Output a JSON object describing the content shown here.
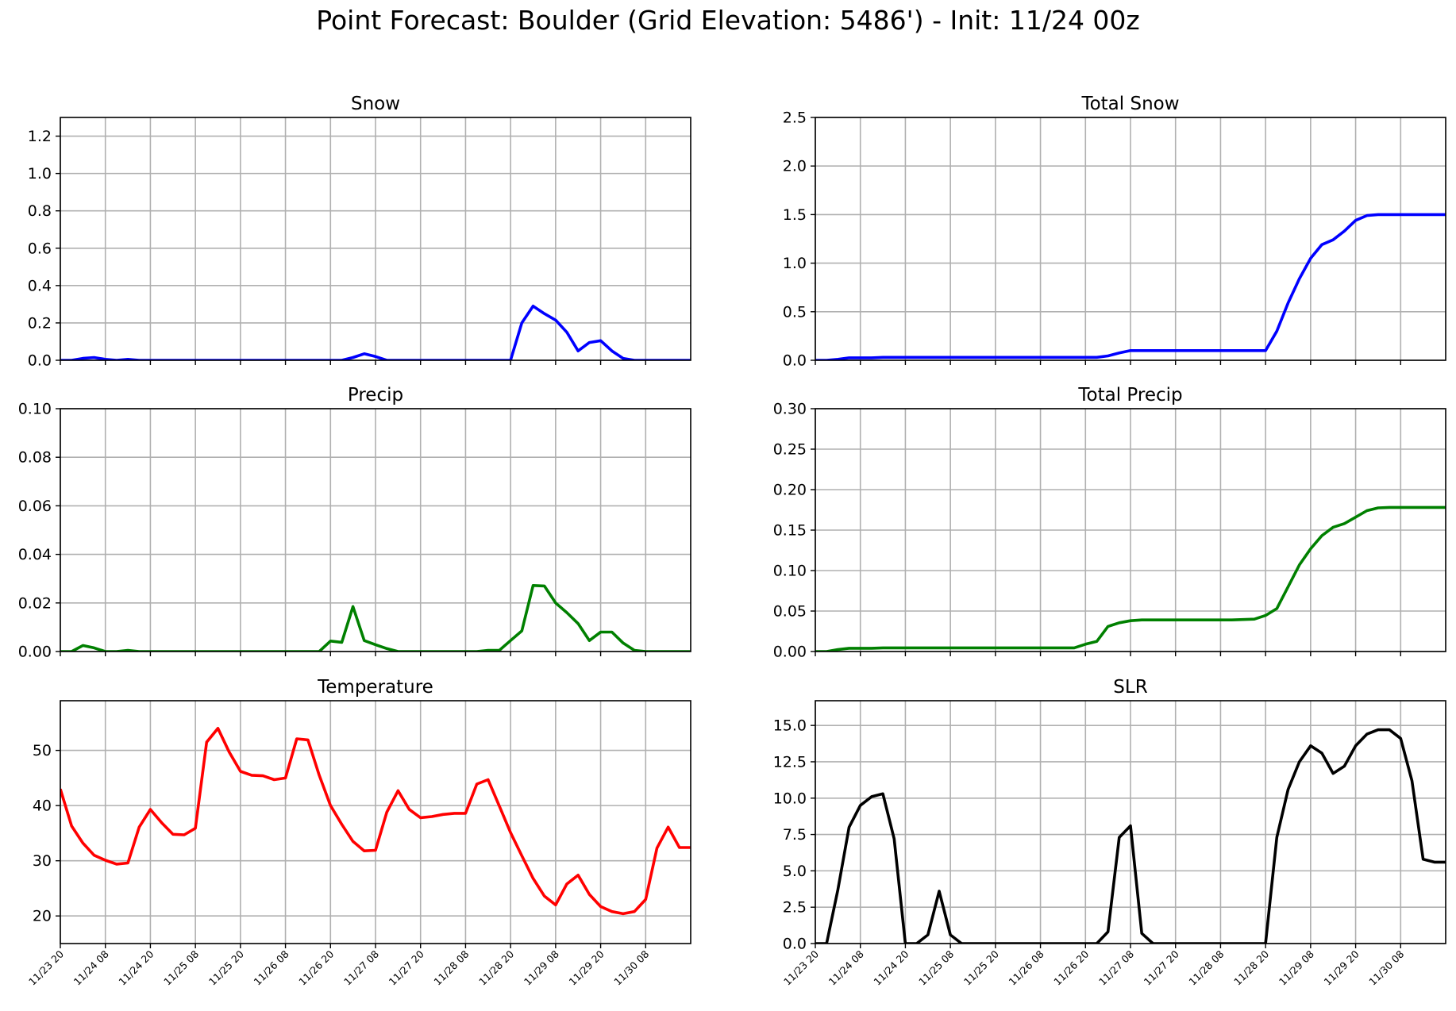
{
  "figure": {
    "title": "Point Forecast: Boulder (Grid Elevation: 5486') - Init: 11/24 00z"
  },
  "colors": {
    "blue": "#0000ff",
    "green": "#008000",
    "red": "#ff0000",
    "black": "#000000",
    "grid": "#b0b0b0"
  },
  "chart_data": [
    {
      "type": "line",
      "title": "Snow",
      "xlabel": "",
      "ylabel": "",
      "color": "#0000ff",
      "grid": true,
      "ylim": [
        0,
        1.3
      ],
      "yticks": [
        "0.0",
        "0.2",
        "0.4",
        "0.6",
        "0.8",
        "1.0",
        "1.2"
      ],
      "x_tick_labels": [
        "11/23 20",
        "11/24 08",
        "11/24 20",
        "11/25 08",
        "11/25 20",
        "11/26 08",
        "11/26 20",
        "11/27 08",
        "11/27 20",
        "11/28 08",
        "11/28 20",
        "11/29 08",
        "11/29 20",
        "11/30 08"
      ],
      "series": [
        {
          "values": [
            0,
            0,
            0.01,
            0.015,
            0.005,
            0,
            0.005,
            0,
            0,
            0,
            0,
            0,
            0,
            0,
            0,
            0,
            0,
            0,
            0,
            0,
            0,
            0,
            0,
            0,
            0,
            0,
            0.015,
            0.035,
            0.02,
            0,
            0,
            0,
            0,
            0,
            0,
            0,
            0,
            0,
            0,
            0,
            0,
            0.2,
            0.29,
            0.25,
            0.215,
            0.15,
            0.05,
            0.095,
            0.105,
            0.05,
            0.01,
            0,
            0,
            0,
            0,
            0,
            0
          ]
        }
      ]
    },
    {
      "type": "line",
      "title": "Total Snow",
      "xlabel": "",
      "ylabel": "",
      "color": "#0000ff",
      "grid": true,
      "ylim": [
        0,
        2.5
      ],
      "yticks": [
        "0.0",
        "0.5",
        "1.0",
        "1.5",
        "2.0",
        "2.5"
      ],
      "x_tick_labels": [
        "11/23 20",
        "11/24 08",
        "11/24 20",
        "11/25 08",
        "11/25 20",
        "11/26 08",
        "11/26 20",
        "11/27 08",
        "11/27 20",
        "11/28 08",
        "11/28 20",
        "11/29 08",
        "11/29 20",
        "11/30 08"
      ],
      "series": [
        {
          "values": [
            0,
            0,
            0.01,
            0.025,
            0.025,
            0.025,
            0.03,
            0.03,
            0.03,
            0.03,
            0.03,
            0.03,
            0.03,
            0.03,
            0.03,
            0.03,
            0.03,
            0.03,
            0.03,
            0.03,
            0.03,
            0.03,
            0.03,
            0.03,
            0.03,
            0.03,
            0.045,
            0.075,
            0.1,
            0.1,
            0.1,
            0.1,
            0.1,
            0.1,
            0.1,
            0.1,
            0.1,
            0.1,
            0.1,
            0.1,
            0.1,
            0.3,
            0.59,
            0.84,
            1.05,
            1.19,
            1.24,
            1.33,
            1.44,
            1.49,
            1.5,
            1.5,
            1.5,
            1.5,
            1.5,
            1.5,
            1.5
          ]
        }
      ]
    },
    {
      "type": "line",
      "title": "Precip",
      "xlabel": "",
      "ylabel": "",
      "color": "#008000",
      "grid": true,
      "ylim": [
        0,
        0.1
      ],
      "yticks": [
        "0.00",
        "0.02",
        "0.04",
        "0.06",
        "0.08",
        "0.10"
      ],
      "x_tick_labels": [
        "11/23 20",
        "11/24 08",
        "11/24 20",
        "11/25 08",
        "11/25 20",
        "11/26 08",
        "11/26 20",
        "11/27 08",
        "11/27 20",
        "11/28 08",
        "11/28 20",
        "11/29 08",
        "11/29 20",
        "11/30 08"
      ],
      "series": [
        {
          "values": [
            0,
            0,
            0.0025,
            0.0015,
            0,
            0,
            0.0005,
            0,
            0,
            0,
            0,
            0,
            0,
            0,
            0,
            0,
            0,
            0,
            0,
            0,
            0,
            0,
            0,
            0,
            0.0043,
            0.0038,
            0.0185,
            0.0045,
            0.0028,
            0.0012,
            0,
            0,
            0,
            0,
            0,
            0,
            0,
            0,
            0.0005,
            0.0005,
            0.0045,
            0.0085,
            0.0272,
            0.027,
            0.02,
            0.016,
            0.0115,
            0.0045,
            0.008,
            0.008,
            0.0035,
            0.0005,
            0,
            0,
            0,
            0,
            0
          ]
        }
      ]
    },
    {
      "type": "line",
      "title": "Total Precip",
      "xlabel": "",
      "ylabel": "",
      "color": "#008000",
      "grid": true,
      "ylim": [
        0,
        0.3
      ],
      "yticks": [
        "0.00",
        "0.05",
        "0.10",
        "0.15",
        "0.20",
        "0.25",
        "0.30"
      ],
      "x_tick_labels": [
        "11/23 20",
        "11/24 08",
        "11/24 20",
        "11/25 08",
        "11/25 20",
        "11/26 08",
        "11/26 20",
        "11/27 08",
        "11/27 20",
        "11/28 08",
        "11/28 20",
        "11/29 08",
        "11/29 20",
        "11/30 08"
      ],
      "series": [
        {
          "values": [
            0,
            0,
            0.0025,
            0.004,
            0.004,
            0.004,
            0.0045,
            0.0045,
            0.0045,
            0.0045,
            0.0045,
            0.0045,
            0.0045,
            0.0045,
            0.0045,
            0.0045,
            0.0045,
            0.0045,
            0.0045,
            0.0045,
            0.0045,
            0.0045,
            0.0045,
            0.0045,
            0.009,
            0.0125,
            0.031,
            0.0355,
            0.038,
            0.039,
            0.039,
            0.039,
            0.039,
            0.039,
            0.039,
            0.039,
            0.039,
            0.039,
            0.0395,
            0.04,
            0.0445,
            0.053,
            0.08,
            0.107,
            0.127,
            0.143,
            0.1535,
            0.158,
            0.166,
            0.174,
            0.1775,
            0.178,
            0.178,
            0.178,
            0.178,
            0.178,
            0.178
          ]
        }
      ]
    },
    {
      "type": "line",
      "title": "Temperature",
      "xlabel": "",
      "ylabel": "",
      "color": "#ff0000",
      "grid": true,
      "ylim": [
        15,
        59
      ],
      "yticks": [
        "20",
        "30",
        "40",
        "50"
      ],
      "x_tick_labels": [
        "11/23 20",
        "11/24 08",
        "11/24 20",
        "11/25 08",
        "11/25 20",
        "11/26 08",
        "11/26 20",
        "11/27 08",
        "11/27 20",
        "11/28 08",
        "11/28 20",
        "11/29 08",
        "11/29 20",
        "11/30 08"
      ],
      "series": [
        {
          "values": [
            43,
            36.3,
            33.2,
            31,
            30.1,
            29.4,
            29.6,
            36.1,
            39.3,
            36.9,
            34.8,
            34.7,
            35.9,
            51.5,
            54,
            49.7,
            46.2,
            45.5,
            45.4,
            44.7,
            45,
            52.1,
            51.9,
            45.5,
            40,
            36.6,
            33.5,
            31.8,
            31.9,
            38.8,
            42.7,
            39.3,
            37.8,
            38,
            38.4,
            38.6,
            38.6,
            43.9,
            44.7,
            39.9,
            35.1,
            30.9,
            26.8,
            23.6,
            22,
            25.8,
            27.4,
            23.9,
            21.7,
            20.8,
            20.4,
            20.8,
            23,
            32.3,
            36.1,
            32.4,
            32.4
          ]
        }
      ]
    },
    {
      "type": "line",
      "title": "SLR",
      "xlabel": "",
      "ylabel": "",
      "color": "#000000",
      "grid": true,
      "ylim": [
        0,
        16.7
      ],
      "yticks": [
        "0.0",
        "2.5",
        "5.0",
        "7.5",
        "10.0",
        "12.5",
        "15.0"
      ],
      "x_tick_labels": [
        "11/23 20",
        "11/24 08",
        "11/24 20",
        "11/25 08",
        "11/25 20",
        "11/26 08",
        "11/26 20",
        "11/27 08",
        "11/27 20",
        "11/28 08",
        "11/28 20",
        "11/29 08",
        "11/29 20",
        "11/30 08"
      ],
      "series": [
        {
          "values": [
            0,
            0,
            3.7,
            8,
            9.5,
            10.1,
            10.3,
            7.2,
            0,
            0,
            0.6,
            3.6,
            0.6,
            0,
            0,
            0,
            0,
            0,
            0,
            0,
            0,
            0,
            0,
            0,
            0,
            0,
            0.8,
            7.3,
            8.1,
            0.7,
            0,
            0,
            0,
            0,
            0,
            0,
            0,
            0,
            0,
            0,
            0,
            7.3,
            10.6,
            12.5,
            13.6,
            13.1,
            11.7,
            12.2,
            13.6,
            14.4,
            14.7,
            14.7,
            14.1,
            11.2,
            5.8,
            5.6,
            5.6
          ]
        }
      ]
    }
  ]
}
